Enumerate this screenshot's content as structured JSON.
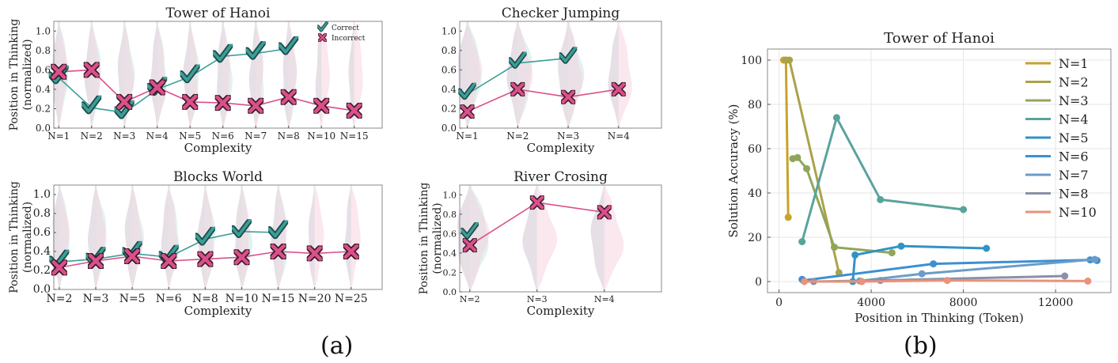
{
  "figure": {
    "caption_a": "(a)",
    "caption_b": "(b)"
  },
  "colors": {
    "correct": "#3a9e99",
    "incorrect": "#d9508a",
    "correct_fill": "#bfe3dd",
    "incorrect_fill": "#f6c9da",
    "overlap_fill": "#c8b9c8"
  },
  "chart_data": [
    {
      "id": "hanoi_a",
      "type": "line",
      "title": "Tower of Hanoi",
      "xlabel": "Complexity",
      "ylabel": "Position in Thinking\n(normalized)",
      "categories": [
        "N=1",
        "N=2",
        "N=3",
        "N=4",
        "N=5",
        "N=6",
        "N=7",
        "N=8",
        "N=10",
        "N=15"
      ],
      "ylim": [
        0,
        1.1
      ],
      "yticks": [
        "0.0",
        "0.2",
        "0.4",
        "0.6",
        "0.8",
        "1.0"
      ],
      "legend": {
        "position": "top-right",
        "correct_label": "Correct",
        "incorrect_label": "Incorrect"
      },
      "series": [
        {
          "name": "Correct",
          "kind": "correct",
          "values": [
            0.52,
            0.21,
            0.16,
            0.4,
            0.53,
            0.74,
            0.77,
            0.82,
            null,
            null
          ]
        },
        {
          "name": "Incorrect",
          "kind": "incorrect",
          "values": [
            0.58,
            0.6,
            0.27,
            0.42,
            0.27,
            0.26,
            0.23,
            0.32,
            0.23,
            0.18
          ]
        }
      ]
    },
    {
      "id": "checker_a",
      "type": "line",
      "title": "Checker Jumping",
      "xlabel": "Complexity",
      "ylabel": "",
      "categories": [
        "N=1",
        "N=2",
        "N=3",
        "N=4"
      ],
      "ylim": [
        0,
        1.1
      ],
      "yticks": [
        "0.0",
        "0.2",
        "0.4",
        "0.6",
        "0.8",
        "1.0"
      ],
      "series": [
        {
          "name": "Correct",
          "kind": "correct",
          "values": [
            0.35,
            0.67,
            0.72,
            null
          ]
        },
        {
          "name": "Incorrect",
          "kind": "incorrect",
          "values": [
            0.17,
            0.4,
            0.32,
            0.4
          ]
        }
      ]
    },
    {
      "id": "blocks_a",
      "type": "line",
      "title": "Blocks World",
      "xlabel": "Complexity",
      "ylabel": "Position in Thinking\n(normalized)",
      "categories": [
        "N=2",
        "N=3",
        "N=5",
        "N=6",
        "N=8",
        "N=10",
        "N=15",
        "N=20",
        "N=25"
      ],
      "ylim": [
        0,
        1.1
      ],
      "yticks": [
        "0.0",
        "0.2",
        "0.4",
        "0.6",
        "0.8",
        "1.0"
      ],
      "series": [
        {
          "name": "Correct",
          "kind": "correct",
          "values": [
            0.29,
            0.32,
            0.38,
            0.34,
            0.53,
            0.61,
            0.6,
            null,
            null
          ]
        },
        {
          "name": "Incorrect",
          "kind": "incorrect",
          "values": [
            0.23,
            0.3,
            0.35,
            0.3,
            0.32,
            0.34,
            0.4,
            0.38,
            0.4
          ]
        }
      ]
    },
    {
      "id": "river_a",
      "type": "line",
      "title": "River Crosing",
      "xlabel": "Complexity",
      "ylabel": "Position in Thinking\n(normalized)",
      "categories": [
        "N=2",
        "N=3",
        "N=4"
      ],
      "ylim": [
        0,
        1.1
      ],
      "yticks": [
        "0.0",
        "0.2",
        "0.4",
        "0.6",
        "0.8",
        "1.0"
      ],
      "series": [
        {
          "name": "Correct",
          "kind": "correct",
          "values": [
            0.6,
            null,
            null
          ]
        },
        {
          "name": "Incorrect",
          "kind": "incorrect",
          "values": [
            0.48,
            0.92,
            0.82
          ]
        }
      ]
    },
    {
      "id": "hanoi_b",
      "type": "line",
      "title": "Tower of Hanoi",
      "xlabel": "Position in Thinking (Token)",
      "ylabel": "Solution Accuracy (%)",
      "xlim": [
        -500,
        14400
      ],
      "ylim": [
        -5,
        105
      ],
      "xticks": [
        0,
        4000,
        8000,
        12000
      ],
      "yticks": [
        0,
        20,
        40,
        60,
        80,
        100
      ],
      "grid": true,
      "legend": "top-right",
      "series": [
        {
          "name": "N=1",
          "color": "#c9a227",
          "points": [
            [
              200,
              100
            ],
            [
              300,
              100
            ],
            [
              400,
              29
            ]
          ]
        },
        {
          "name": "N=2",
          "color": "#aaa24a",
          "points": [
            [
              300,
              100
            ],
            [
              450,
              100
            ],
            [
              2600,
              4
            ]
          ]
        },
        {
          "name": "N=3",
          "color": "#8fa65a",
          "points": [
            [
              600,
              55.5
            ],
            [
              800,
              56
            ],
            [
              1200,
              51
            ],
            [
              2400,
              15.5
            ],
            [
              4900,
              13
            ]
          ]
        },
        {
          "name": "N=4",
          "color": "#5aa39c",
          "points": [
            [
              1000,
              18
            ],
            [
              2500,
              74
            ],
            [
              4400,
              37
            ],
            [
              8000,
              32.5
            ]
          ]
        },
        {
          "name": "N=5",
          "color": "#3293c4",
          "points": [
            [
              3200,
              0
            ],
            [
              3300,
              12
            ],
            [
              5300,
              16
            ],
            [
              9000,
              15
            ]
          ]
        },
        {
          "name": "N=6",
          "color": "#3d8fd0",
          "points": [
            [
              1000,
              1
            ],
            [
              1050,
              0.5
            ],
            [
              6700,
              8
            ],
            [
              13500,
              9.8
            ],
            [
              13800,
              9.5
            ]
          ]
        },
        {
          "name": "N=7",
          "color": "#6b9cc9",
          "points": [
            [
              3500,
              0.3
            ],
            [
              6200,
              3.5
            ],
            [
              13700,
              10
            ]
          ]
        },
        {
          "name": "N=8",
          "color": "#8a90a8",
          "points": [
            [
              1500,
              0
            ],
            [
              4400,
              0.5
            ],
            [
              12400,
              2.5
            ]
          ]
        },
        {
          "name": "N=10",
          "color": "#e8937a",
          "points": [
            [
              1100,
              0
            ],
            [
              3600,
              0
            ],
            [
              7300,
              0.5
            ],
            [
              13400,
              0.2
            ]
          ]
        }
      ]
    }
  ]
}
